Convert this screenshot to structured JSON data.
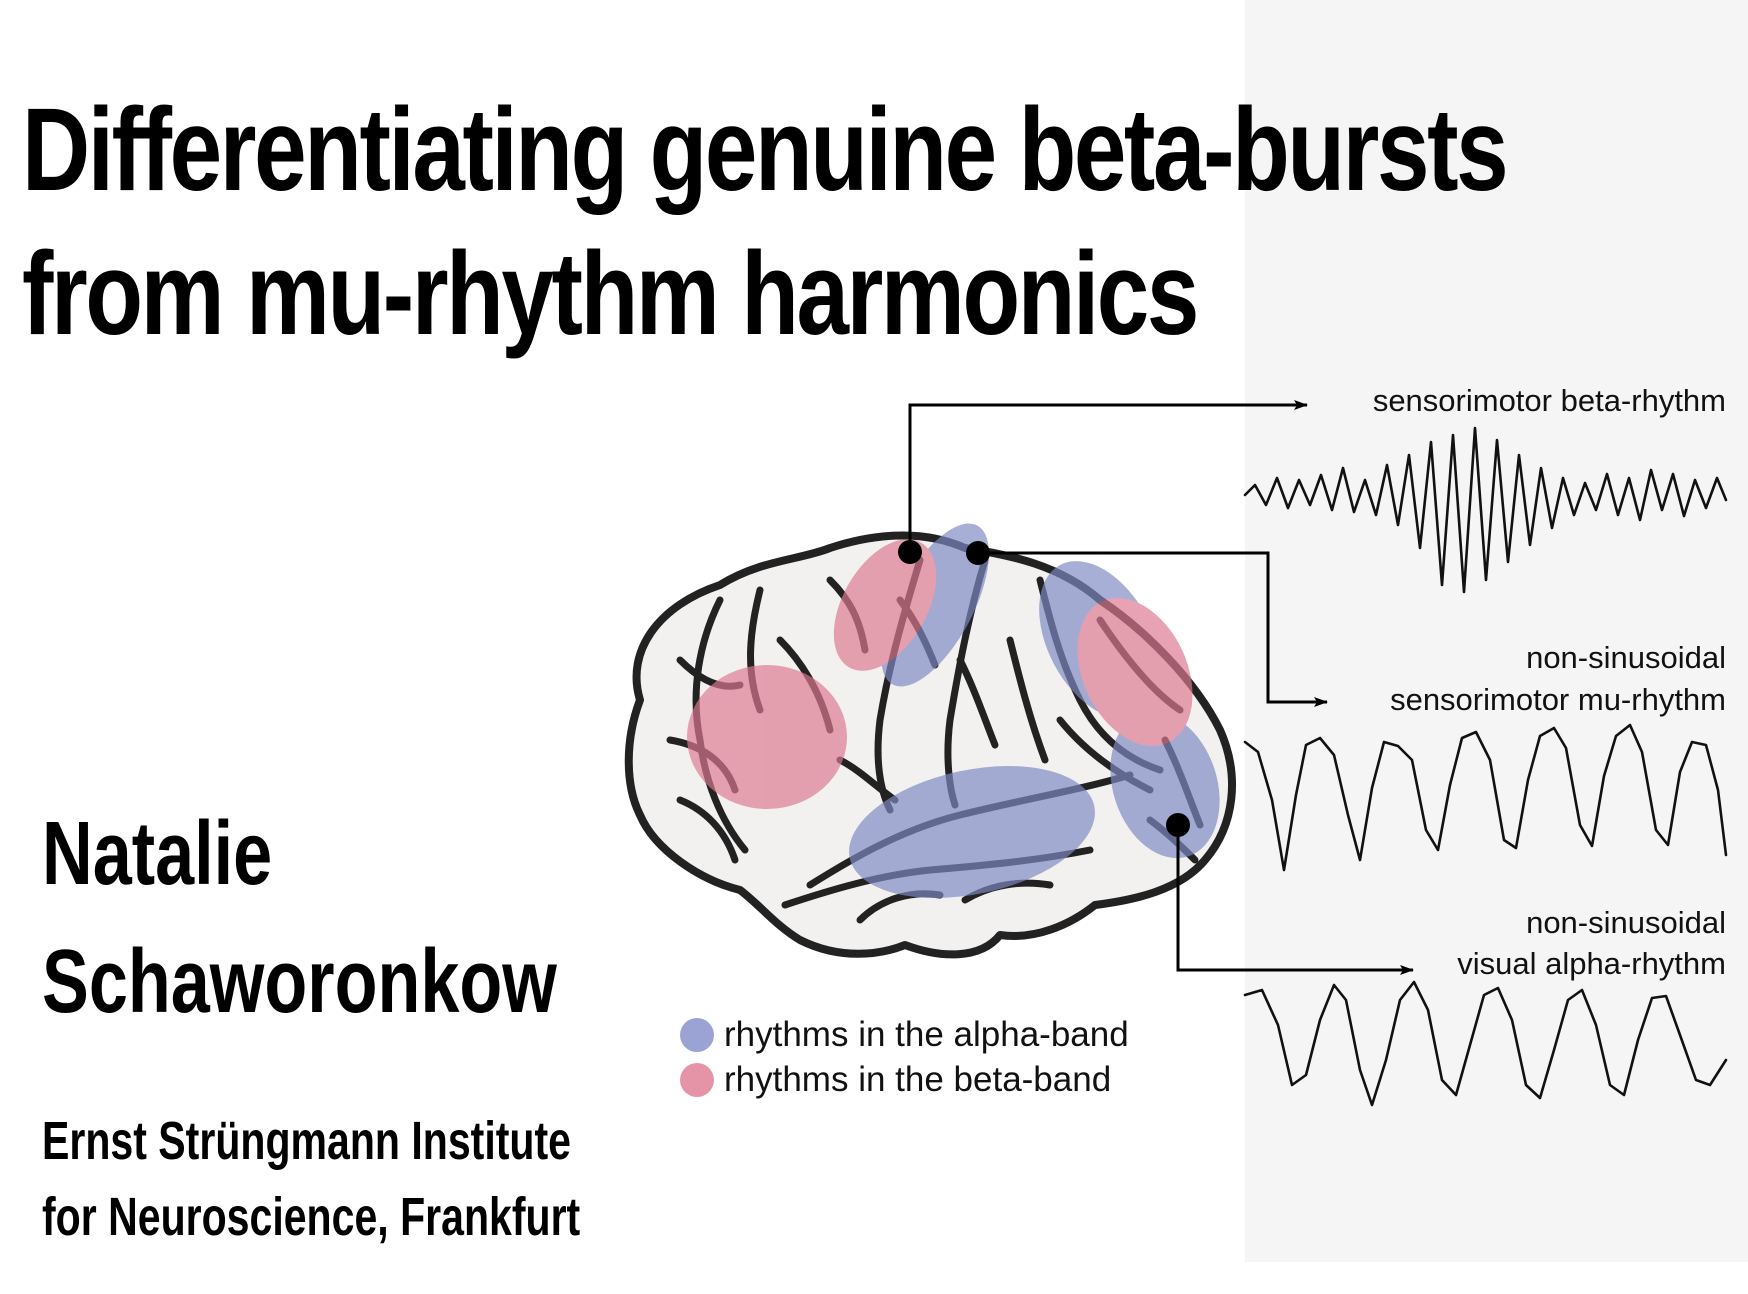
{
  "title": {
    "line1": "Differentiating genuine beta-bursts",
    "line2": "from mu-rhythm harmonics"
  },
  "author": {
    "first": "Natalie",
    "last": "Schaworonkow"
  },
  "institution": {
    "line1": "Ernst Strüngmann Institute",
    "line2": "for Neuroscience, Frankfurt"
  },
  "traces": [
    {
      "label": "sensorimotor beta-rhythm"
    },
    {
      "label_top": "non-sinusoidal",
      "label_bottom": "sensorimotor mu-rhythm"
    },
    {
      "label_top": "non-sinusoidal",
      "label_bottom": "visual alpha-rhythm"
    }
  ],
  "legend": {
    "alpha": "rhythms in the alpha-band",
    "beta": "rhythms in the beta-band"
  },
  "colors": {
    "alpha": "#7e8ac4",
    "beta": "#dd7990",
    "panel": "#f5f5f5"
  }
}
